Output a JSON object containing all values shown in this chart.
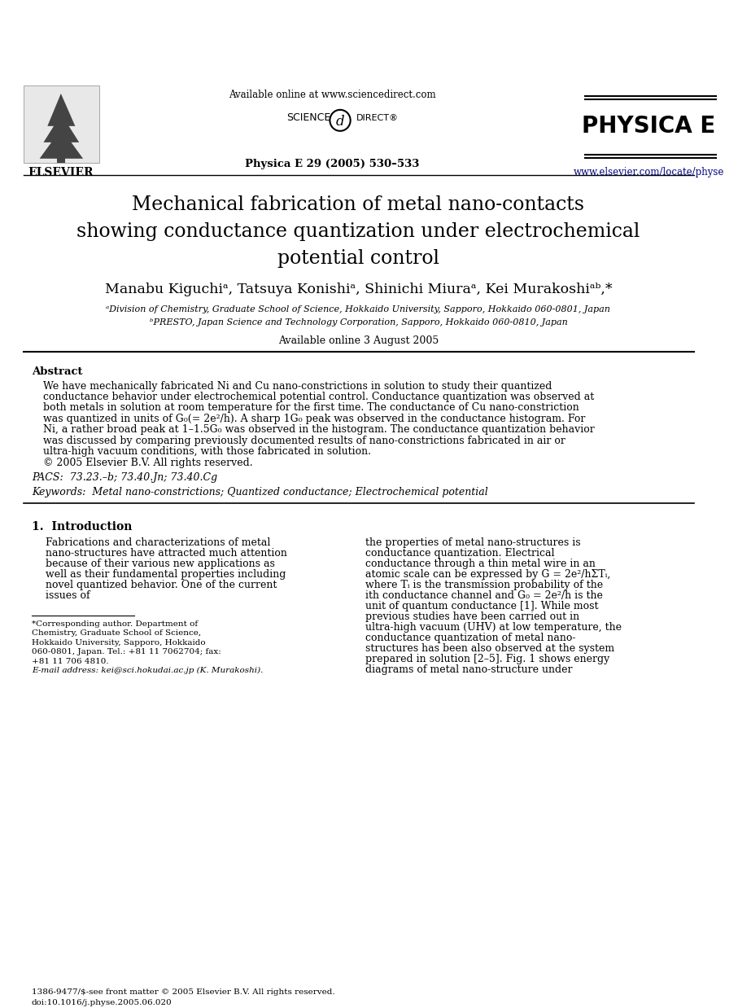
{
  "bg_color": "#ffffff",
  "header": {
    "available_online": "Available online at www.sciencedirect.com",
    "journal_info": "Physica E 29 (2005) 530–533",
    "url": "www.elsevier.com/locate/physe",
    "physica_e": "PHYSICA E"
  },
  "title_lines": [
    "Mechanical fabrication of metal nano-contacts",
    "showing conductance quantization under electrochemical",
    "potential control"
  ],
  "authors": "Manabu Kiguchiᵃ, Tatsuya Konishiᵃ, Shinichi Miuraᵃ, Kei Murakoshiᵃᵇ,*",
  "affil_a": "ᵃDivision of Chemistry, Graduate School of Science, Hokkaido University, Sapporo, Hokkaido 060-0801, Japan",
  "affil_b": "ᵇPRESTO, Japan Science and Technology Corporation, Sapporo, Hokkaido 060-0810, Japan",
  "available_online_date": "Available online 3 August 2005",
  "abstract_title": "Abstract",
  "abstract_text": "We have mechanically fabricated Ni and Cu nano-constrictions in solution to study their quantized conductance behavior under electrochemical potential control. Conductance quantization was observed at both metals in solution at room temperature for the first time. The conductance of Cu nano-constriction was quantized in units of G₀(= 2e²/h). A sharp 1G₀ peak was observed in the conductance histogram. For Ni, a rather broad peak at 1–1.5G₀ was observed in the histogram. The conductance quantization behavior was discussed by comparing previously documented results of nano-constrictions fabricated in air or ultra-high vacuum conditions, with those fabricated in solution.\n© 2005 Elsevier B.V. All rights reserved.",
  "pacs": "PACS:  73.23.–b; 73.40.Jn; 73.40.Cg",
  "keywords": "Keywords:  Metal nano-constrictions; Quantized conductance; Electrochemical potential",
  "section1_title": "1.  Introduction",
  "col1_para1": "Fabrications and characterizations of metal nano-structures have attracted much attention because of their various new applications as well as their fundamental properties including novel quantized behavior. One of the current issues of",
  "col2_para1": "the properties of metal nano-structures is conductance quantization. Electrical conductance through a thin metal wire in an atomic scale can be expressed by G = 2e²/hΣTᵢ, where Tᵢ is the transmission probability of the ith conductance channel and G₀ = 2e²/h is the unit of quantum conductance [1]. While most previous studies have been carried out in ultra-high vacuum (UHV) at low temperature, the conductance quantization of metal nano-structures has been also observed at the system prepared in solution [2–5]. Fig. 1 shows energy diagrams of metal nano-structure under",
  "footnote_star": "*Corresponding author. Department of Chemistry, Graduate School of Science, Hokkaido University, Sapporo, Hokkaido 060-0801, Japan. Tel.: +81 11 7062704; fax: +81 11 706 4810.",
  "footnote_email": "E-mail address: kei@sci.hokudai.ac.jp (K. Murakoshi).",
  "footer_left": "1386-9477/$-see front matter © 2005 Elsevier B.V. All rights reserved.\ndoi:10.1016/j.physe.2005.06.020"
}
